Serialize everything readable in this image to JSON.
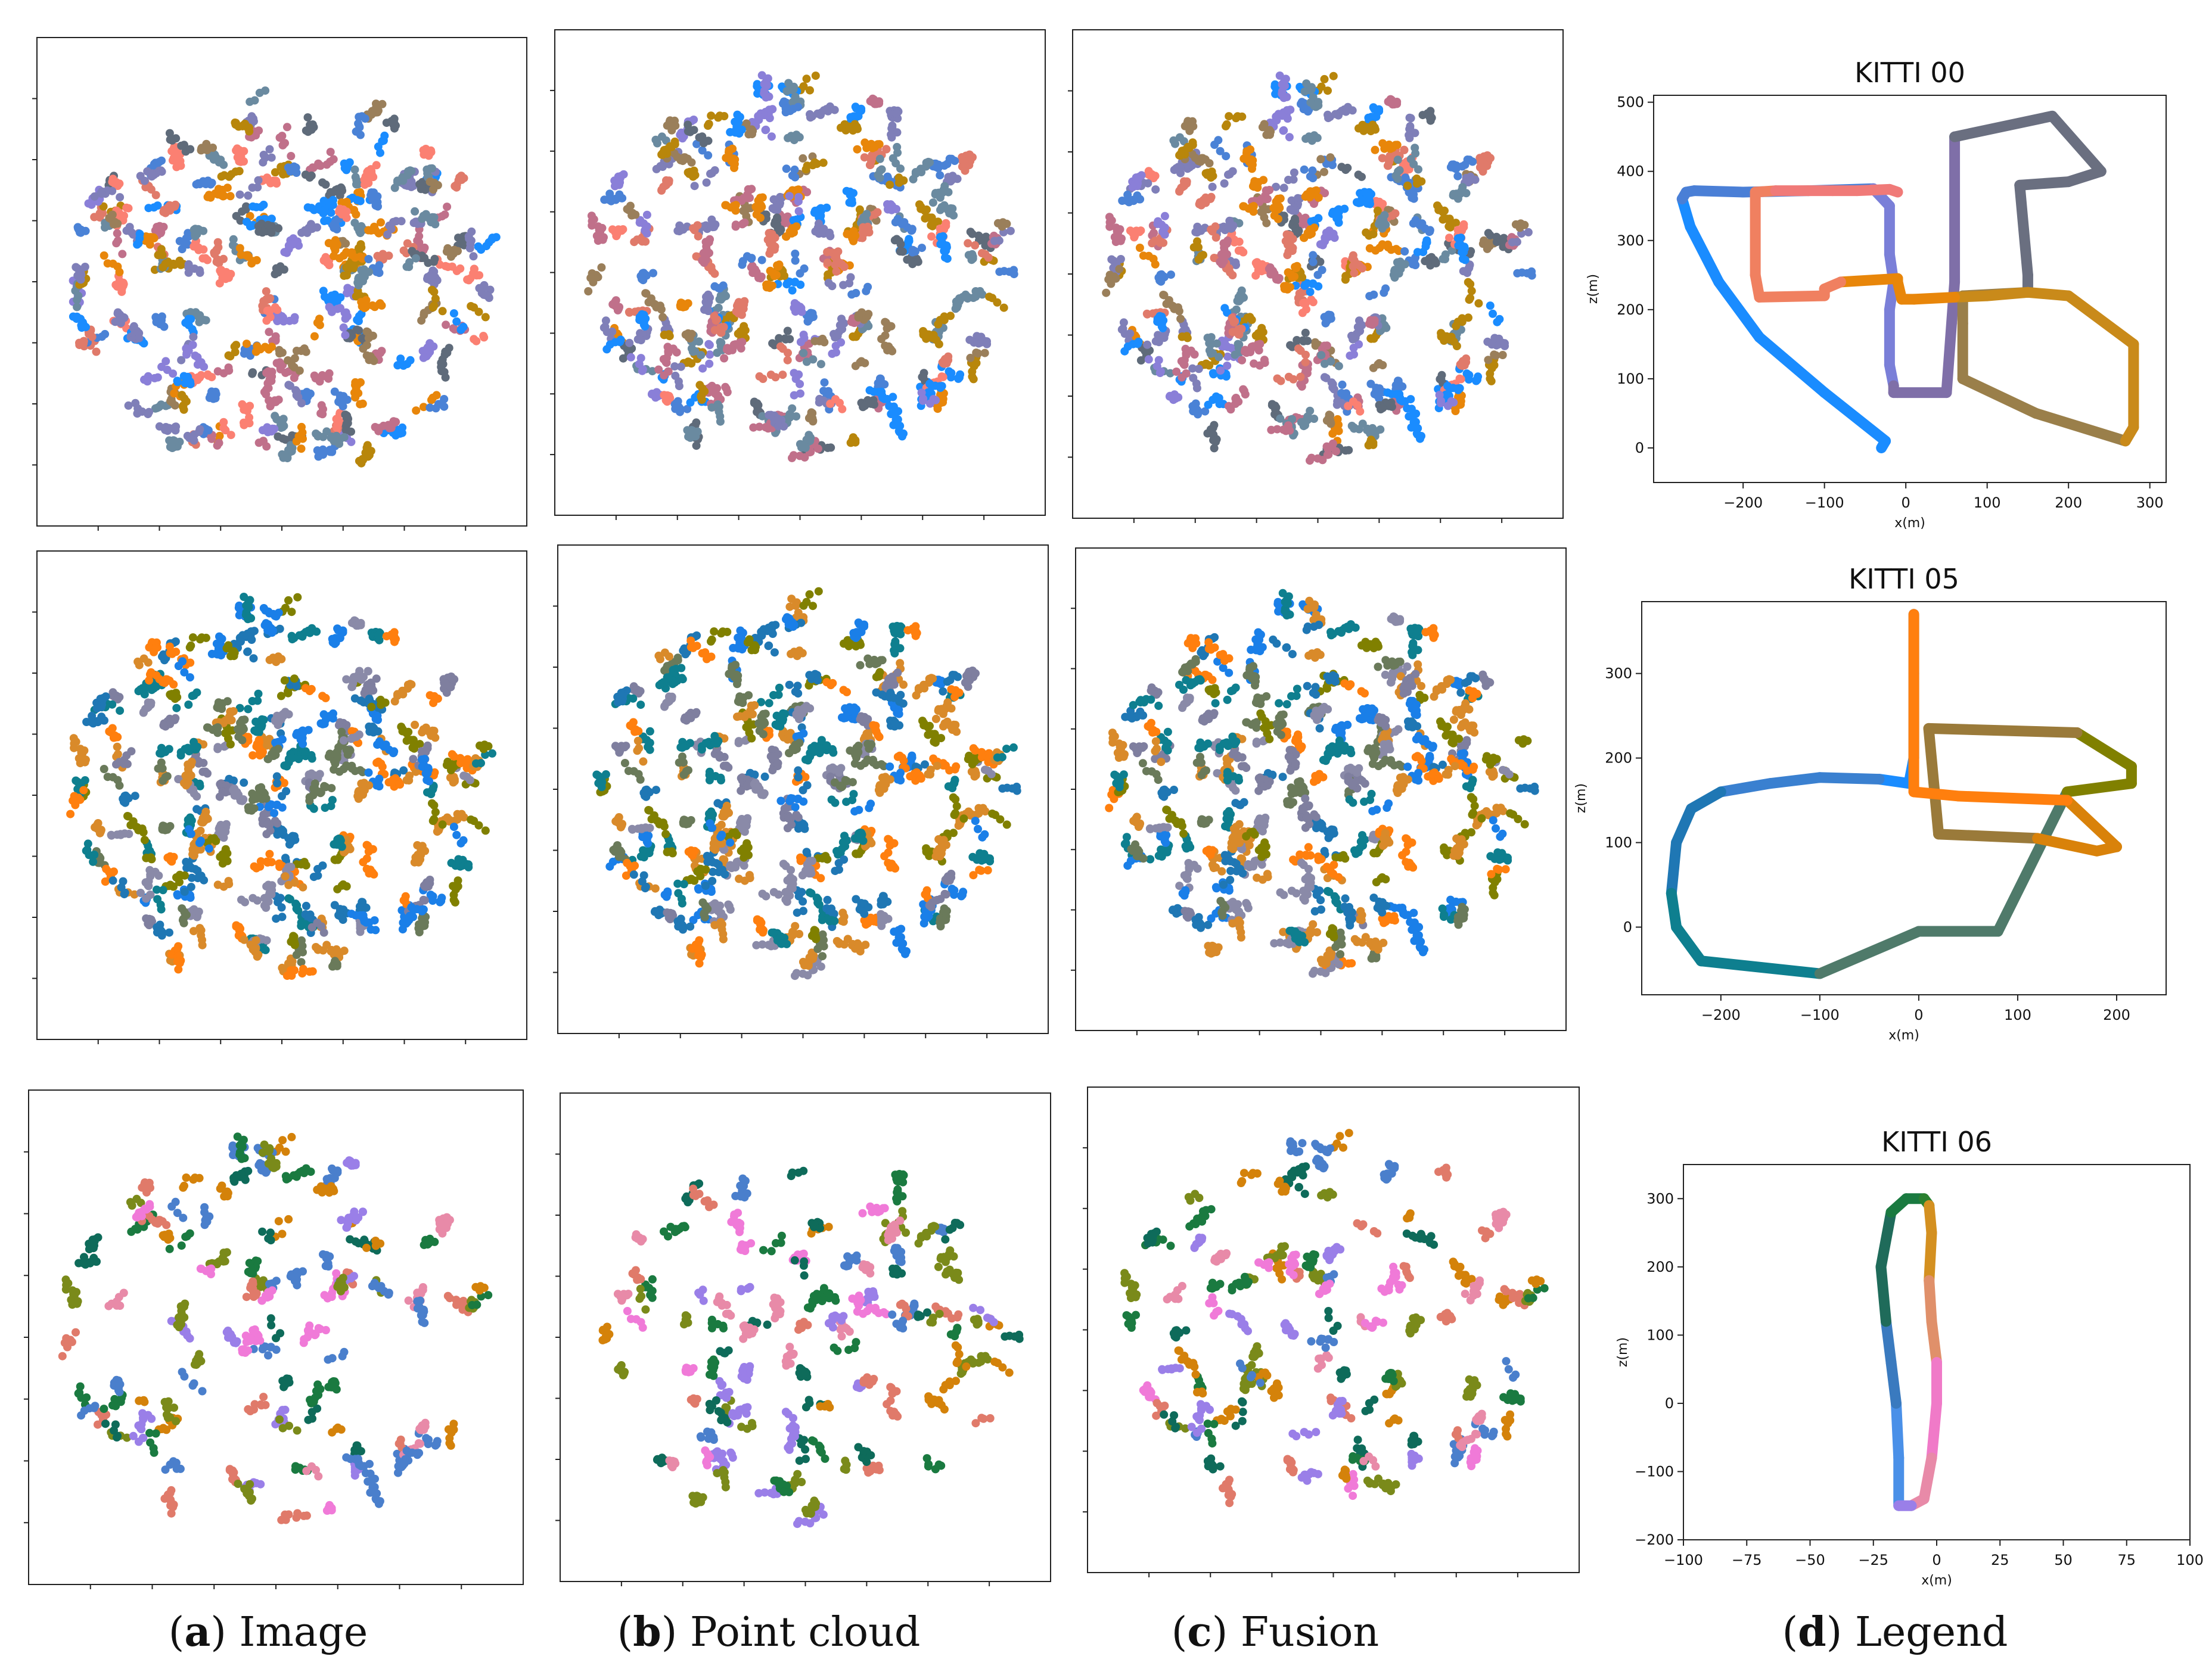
{
  "figure_captions": [
    {
      "letter": "a",
      "label": "Image"
    },
    {
      "letter": "b",
      "label": "Point cloud"
    },
    {
      "letter": "c",
      "label": "Fusion"
    },
    {
      "letter": "d",
      "label": "Legend"
    }
  ],
  "palettes": {
    "kitti00": [
      "#1a8cff",
      "#4a82d6",
      "#8a7fd8",
      "#7f7fb8",
      "#5f6b7a",
      "#9a7f5a",
      "#b8860b",
      "#e8860a",
      "#fb8072",
      "#e07a6a",
      "#c0708a",
      "#6a8aa0"
    ],
    "kitti05": [
      "#1a7fe8",
      "#1f77b4",
      "#0e7f8f",
      "#ff7f0e",
      "#808000",
      "#6a7a5a",
      "#7f7f9f",
      "#8a8aa8",
      "#d98a2a"
    ],
    "kitti06": [
      "#4a7fcc",
      "#0e6b5a",
      "#1a7a40",
      "#e07a6a",
      "#d4820a",
      "#f07ad8",
      "#e88aa8",
      "#9a7fe8",
      "#7a8a1a"
    ]
  },
  "chart_data": [
    {
      "type": "line",
      "title": "KITTI 00",
      "xlabel": "x(m)",
      "ylabel": "z(m)",
      "xlim": [
        -310,
        320
      ],
      "ylim": [
        -50,
        510
      ],
      "xticks": [
        -200,
        -100,
        0,
        100,
        200,
        300
      ],
      "yticks": [
        0,
        100,
        200,
        300,
        400,
        500
      ],
      "colors": [
        "#1a8cff",
        "#4a7fd6",
        "#7a7fd8",
        "#7f6fa8",
        "#6a6f80",
        "#9a7f4a",
        "#c98a1a",
        "#e8860a",
        "#f08060",
        "#f07a78"
      ],
      "series": [
        {
          "name": "trajectory",
          "x": [
            -30,
            -25,
            -100,
            -180,
            -230,
            -265,
            -275,
            -270,
            -260,
            -200,
            -120,
            -40,
            -20,
            -20,
            -15,
            -20,
            -20,
            -15,
            -15,
            -10,
            50,
            60,
            60,
            180,
            240,
            200,
            140,
            150,
            150,
            70,
            70,
            70,
            160,
            270,
            280,
            280,
            200,
            150,
            100,
            60,
            10,
            -5,
            -10,
            -10,
            -80,
            -100,
            -100,
            -180,
            -185,
            -185,
            -160,
            -120,
            -90,
            -60,
            -20,
            -10
          ],
          "y": [
            0,
            10,
            80,
            160,
            240,
            320,
            360,
            370,
            372,
            370,
            372,
            375,
            350,
            280,
            240,
            200,
            120,
            90,
            80,
            80,
            80,
            240,
            450,
            480,
            400,
            385,
            380,
            250,
            225,
            220,
            180,
            100,
            50,
            10,
            30,
            150,
            220,
            225,
            220,
            218,
            215,
            215,
            240,
            245,
            240,
            230,
            220,
            218,
            250,
            370,
            372,
            372,
            372,
            372,
            374,
            370
          ]
        }
      ]
    },
    {
      "type": "line",
      "title": "KITTI 05",
      "xlabel": "x(m)",
      "ylabel": "z(m)",
      "xlim": [
        -280,
        250
      ],
      "ylim": [
        -80,
        385
      ],
      "xticks": [
        -200,
        -100,
        0,
        100,
        200
      ],
      "yticks": [
        0,
        100,
        200,
        300
      ],
      "colors": [
        "#1a8cff",
        "#3a80d0",
        "#1f77b4",
        "#0e7f8f",
        "#4f7a6a",
        "#808000",
        "#9a7a3a",
        "#d9820a",
        "#ff7f0e"
      ],
      "series": [
        {
          "name": "trajectory",
          "x": [
            -5,
            -5,
            -5,
            -10,
            -40,
            -100,
            -150,
            -200,
            -230,
            -245,
            -250,
            -245,
            -220,
            -100,
            0,
            10,
            80,
            150,
            215,
            215,
            160,
            10,
            20,
            120,
            180,
            200,
            150,
            40,
            -5,
            -5
          ],
          "y": [
            370,
            300,
            200,
            170,
            175,
            177,
            170,
            160,
            140,
            100,
            40,
            0,
            -40,
            -55,
            -5,
            -5,
            -5,
            160,
            170,
            190,
            230,
            235,
            110,
            105,
            90,
            95,
            150,
            155,
            160,
            370
          ]
        }
      ]
    },
    {
      "type": "line",
      "title": "KITTI 06",
      "xlabel": "x(m)",
      "ylabel": "z(m)",
      "xlim": [
        -100,
        100
      ],
      "ylim": [
        -200,
        350
      ],
      "xticks": [
        -100,
        -75,
        -50,
        -25,
        0,
        25,
        50,
        75,
        100
      ],
      "yticks": [
        -200,
        -100,
        0,
        100,
        200,
        300
      ],
      "colors": [
        "#4a90e8",
        "#3a7abf",
        "#1f6b5a",
        "#1a7a40",
        "#2a8030",
        "#d49020",
        "#e0906a",
        "#f07ac8",
        "#e88aa8",
        "#9a7fe8"
      ],
      "series": [
        {
          "name": "trajectory",
          "x": [
            -15,
            -15,
            -16,
            -18,
            -20,
            -22,
            -18,
            -12,
            -5,
            -3,
            -2,
            -3,
            -2,
            0,
            0,
            -2,
            -5,
            -10,
            -15
          ],
          "y": [
            -150,
            -80,
            0,
            60,
            120,
            200,
            280,
            300,
            300,
            290,
            250,
            180,
            120,
            60,
            0,
            -80,
            -140,
            -150,
            -150
          ]
        }
      ]
    }
  ]
}
